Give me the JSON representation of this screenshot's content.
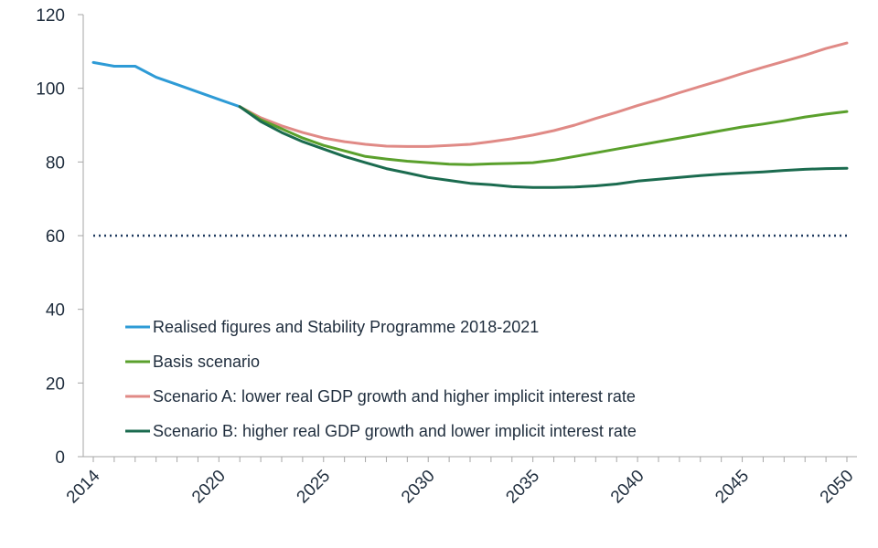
{
  "chart_data": {
    "type": "line",
    "title": "",
    "xlabel": "",
    "ylabel": "",
    "xlim": [
      2014,
      2050
    ],
    "ylim": [
      0,
      120
    ],
    "x_ticks": [
      "2014",
      "2020",
      "2025",
      "2030",
      "2035",
      "2040",
      "2045",
      "2050"
    ],
    "y_ticks": [
      "0",
      "20",
      "40",
      "60",
      "80",
      "100",
      "120"
    ],
    "reference_line": {
      "y": 60,
      "style": "dotted",
      "color": "#1f3a5f"
    },
    "legend": {
      "placement": "lower-left"
    },
    "series": [
      {
        "name": "Realised figures and Stability Programme 2018-2021",
        "color": "#2e9bd6",
        "points": [
          [
            2014,
            107
          ],
          [
            2015,
            106
          ],
          [
            2016,
            106
          ],
          [
            2017,
            103
          ],
          [
            2018,
            101
          ],
          [
            2019,
            99
          ],
          [
            2020,
            97
          ],
          [
            2021,
            95
          ]
        ]
      },
      {
        "name": "Basis scenario",
        "color": "#5aa02c",
        "points": [
          [
            2021,
            95
          ],
          [
            2022,
            91.5
          ],
          [
            2023,
            89
          ],
          [
            2024,
            86.5
          ],
          [
            2025,
            84.5
          ],
          [
            2026,
            83
          ],
          [
            2027,
            81.5
          ],
          [
            2028,
            80.8
          ],
          [
            2029,
            80.2
          ],
          [
            2030,
            79.8
          ],
          [
            2031,
            79.4
          ],
          [
            2032,
            79.3
          ],
          [
            2033,
            79.5
          ],
          [
            2034,
            79.6
          ],
          [
            2035,
            79.8
          ],
          [
            2036,
            80.5
          ],
          [
            2037,
            81.5
          ],
          [
            2038,
            82.5
          ],
          [
            2039,
            83.5
          ],
          [
            2040,
            84.5
          ],
          [
            2041,
            85.5
          ],
          [
            2042,
            86.5
          ],
          [
            2043,
            87.5
          ],
          [
            2044,
            88.5
          ],
          [
            2045,
            89.5
          ],
          [
            2046,
            90.3
          ],
          [
            2047,
            91.2
          ],
          [
            2048,
            92.2
          ],
          [
            2049,
            93
          ],
          [
            2050,
            93.7
          ]
        ]
      },
      {
        "name": "Scenario A: lower real GDP growth and higher implicit interest rate",
        "color": "#e08a86",
        "points": [
          [
            2021,
            95
          ],
          [
            2022,
            92
          ],
          [
            2023,
            89.8
          ],
          [
            2024,
            88
          ],
          [
            2025,
            86.5
          ],
          [
            2026,
            85.5
          ],
          [
            2027,
            84.8
          ],
          [
            2028,
            84.3
          ],
          [
            2029,
            84.2
          ],
          [
            2030,
            84.2
          ],
          [
            2031,
            84.5
          ],
          [
            2032,
            84.8
          ],
          [
            2033,
            85.5
          ],
          [
            2034,
            86.3
          ],
          [
            2035,
            87.3
          ],
          [
            2036,
            88.5
          ],
          [
            2037,
            90
          ],
          [
            2038,
            91.8
          ],
          [
            2039,
            93.5
          ],
          [
            2040,
            95.3
          ],
          [
            2041,
            97
          ],
          [
            2042,
            98.8
          ],
          [
            2043,
            100.5
          ],
          [
            2044,
            102.2
          ],
          [
            2045,
            104
          ],
          [
            2046,
            105.7
          ],
          [
            2047,
            107.3
          ],
          [
            2048,
            109
          ],
          [
            2049,
            110.8
          ],
          [
            2050,
            112.3
          ]
        ]
      },
      {
        "name": "Scenario B: higher real GDP growth and lower implicit interest rate",
        "color": "#1b6b4f",
        "points": [
          [
            2021,
            95
          ],
          [
            2022,
            91
          ],
          [
            2023,
            88
          ],
          [
            2024,
            85.5
          ],
          [
            2025,
            83.5
          ],
          [
            2026,
            81.5
          ],
          [
            2027,
            79.8
          ],
          [
            2028,
            78.2
          ],
          [
            2029,
            77
          ],
          [
            2030,
            75.8
          ],
          [
            2031,
            75
          ],
          [
            2032,
            74.2
          ],
          [
            2033,
            73.8
          ],
          [
            2034,
            73.3
          ],
          [
            2035,
            73.1
          ],
          [
            2036,
            73.1
          ],
          [
            2037,
            73.2
          ],
          [
            2038,
            73.5
          ],
          [
            2039,
            74
          ],
          [
            2040,
            74.8
          ],
          [
            2041,
            75.3
          ],
          [
            2042,
            75.8
          ],
          [
            2043,
            76.3
          ],
          [
            2044,
            76.7
          ],
          [
            2045,
            77
          ],
          [
            2046,
            77.3
          ],
          [
            2047,
            77.7
          ],
          [
            2048,
            78
          ],
          [
            2049,
            78.2
          ],
          [
            2050,
            78.3
          ]
        ]
      }
    ]
  }
}
